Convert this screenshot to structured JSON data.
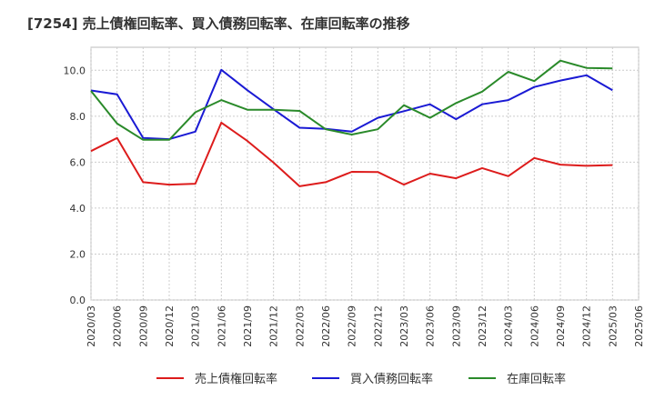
{
  "chart_data": {
    "type": "line",
    "title": "[7254]  売上債権回転率、買入債務回転率、在庫回転率の推移",
    "xlabel": "",
    "ylabel": "",
    "ylim": [
      0,
      11
    ],
    "yticks": [
      0,
      2,
      4,
      6,
      8,
      10
    ],
    "ytick_labels": [
      "0.0",
      "2.0",
      "4.0",
      "6.0",
      "8.0",
      "10.0"
    ],
    "grid": true,
    "legend_position": "bottom",
    "categories": [
      "2020/03",
      "2020/06",
      "2020/09",
      "2020/12",
      "2021/03",
      "2021/06",
      "2021/09",
      "2021/12",
      "2022/03",
      "2022/06",
      "2022/09",
      "2022/12",
      "2023/03",
      "2023/06",
      "2023/09",
      "2023/12",
      "2024/03",
      "2024/06",
      "2024/09",
      "2024/12",
      "2025/03",
      "2025/06"
    ],
    "series": [
      {
        "name": "売上債権回転率",
        "color": "#dd1c1c",
        "values": [
          6.48,
          7.05,
          5.13,
          5.02,
          5.06,
          7.72,
          6.92,
          5.98,
          4.95,
          5.13,
          5.58,
          5.57,
          5.02,
          5.5,
          5.3,
          5.74,
          5.39,
          6.18,
          5.89,
          5.84,
          5.87,
          null
        ]
      },
      {
        "name": "買入債務回転率",
        "color": "#1a1ad4",
        "values": [
          9.12,
          8.95,
          7.05,
          7.0,
          7.33,
          10.02,
          9.13,
          8.3,
          7.5,
          7.45,
          7.33,
          7.93,
          8.22,
          8.52,
          7.87,
          8.52,
          8.7,
          9.27,
          9.55,
          9.78,
          9.13,
          null
        ]
      },
      {
        "name": "在庫回転率",
        "color": "#2a8a2a",
        "values": [
          9.1,
          7.68,
          6.97,
          6.97,
          8.17,
          8.7,
          8.28,
          8.28,
          8.23,
          7.43,
          7.2,
          7.43,
          8.48,
          7.93,
          8.57,
          9.07,
          9.93,
          9.53,
          10.42,
          10.1,
          10.08,
          null
        ]
      }
    ]
  }
}
